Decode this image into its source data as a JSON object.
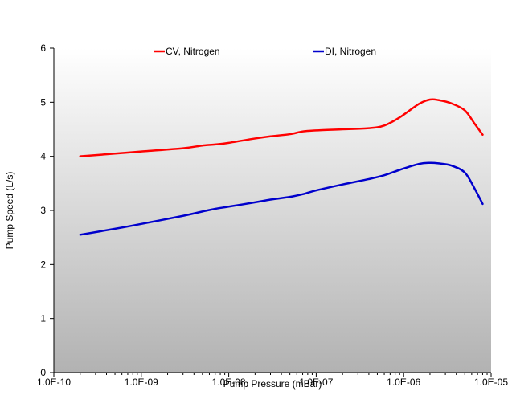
{
  "chart_data": {
    "type": "line",
    "title": "",
    "xlabel": "Pump Pressure (mBar)",
    "ylabel": "Pump Speed (L/s)",
    "x_scale": "log",
    "xlim": [
      1e-10,
      1e-05
    ],
    "ylim": [
      0,
      6
    ],
    "x_tick_values": [
      1e-10,
      1e-09,
      1e-08,
      1e-07,
      1e-06,
      1e-05
    ],
    "x_tick_labels": [
      "1.0E-10",
      "1.0E-09",
      "1.0E-08",
      "1.0E-07",
      "1.0E-06",
      "1.0E-05"
    ],
    "y_tick_values": [
      0,
      1,
      2,
      3,
      4,
      5,
      6
    ],
    "y_tick_labels": [
      "0",
      "1",
      "2",
      "3",
      "4",
      "5",
      "6"
    ],
    "grid": false,
    "legend_position": "top",
    "plot_background": {
      "top": "#ffffff",
      "bottom": "#b2b2b2"
    },
    "series": [
      {
        "name": "CV, Nitrogen",
        "color": "#ff0000",
        "x": [
          2e-10,
          5e-10,
          1e-09,
          3e-09,
          5e-09,
          7e-09,
          1e-08,
          2e-08,
          3e-08,
          5e-08,
          7e-08,
          1e-07,
          2e-07,
          4e-07,
          6e-07,
          9e-07,
          1.5e-06,
          2e-06,
          2.5e-06,
          3.5e-06,
          5e-06,
          6.5e-06,
          8e-06
        ],
        "values": [
          4.0,
          4.05,
          4.09,
          4.15,
          4.2,
          4.22,
          4.25,
          4.33,
          4.37,
          4.41,
          4.46,
          4.48,
          4.5,
          4.52,
          4.57,
          4.72,
          4.97,
          5.05,
          5.04,
          4.98,
          4.85,
          4.6,
          4.4
        ]
      },
      {
        "name": "DI, Nitrogen",
        "color": "#0000cc",
        "x": [
          2e-10,
          5e-10,
          1e-09,
          3e-09,
          5e-09,
          7e-09,
          1e-08,
          2e-08,
          3e-08,
          5e-08,
          7e-08,
          1e-07,
          2e-07,
          4e-07,
          6e-07,
          9e-07,
          1.5e-06,
          2e-06,
          2.5e-06,
          3.5e-06,
          5e-06,
          6.5e-06,
          8e-06
        ],
        "values": [
          2.55,
          2.66,
          2.75,
          2.9,
          2.98,
          3.03,
          3.07,
          3.15,
          3.2,
          3.25,
          3.3,
          3.37,
          3.48,
          3.58,
          3.65,
          3.75,
          3.86,
          3.88,
          3.87,
          3.83,
          3.7,
          3.4,
          3.12
        ]
      }
    ]
  }
}
